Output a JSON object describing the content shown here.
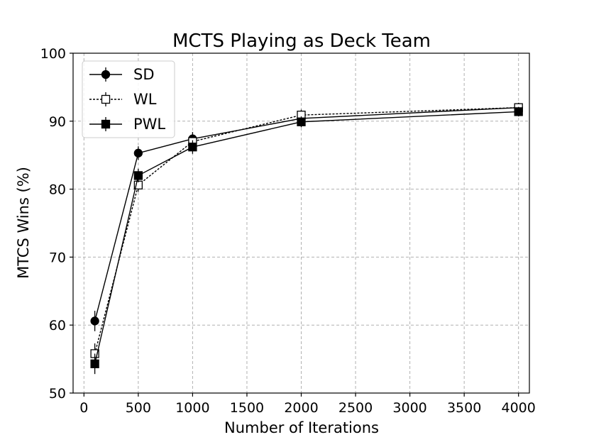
{
  "chart_data": {
    "type": "line",
    "title": "MCTS Playing as Deck Team",
    "xlabel": "Number of Iterations",
    "ylabel": "MTCS Wins (%)",
    "xlim": [
      -100,
      4100
    ],
    "ylim": [
      50,
      100
    ],
    "xticks": [
      0,
      500,
      1000,
      1500,
      2000,
      2500,
      3000,
      3500,
      4000
    ],
    "yticks": [
      50,
      60,
      70,
      80,
      90,
      100
    ],
    "grid": true,
    "legend_position": "top-left",
    "x": [
      100,
      500,
      1000,
      2000,
      4000
    ],
    "series": [
      {
        "name": "SD",
        "marker": "circle",
        "marker_fill": "#000000",
        "line_style": "solid",
        "values": [
          60.6,
          85.3,
          87.4,
          90.4,
          92.0
        ],
        "errors": [
          1.5,
          1.0,
          1.0,
          0.8,
          0.7
        ]
      },
      {
        "name": "WL",
        "marker": "square",
        "marker_fill": "#ffffff",
        "line_style": "dotted",
        "values": [
          55.8,
          80.6,
          87.0,
          90.9,
          92.0
        ],
        "errors": [
          1.5,
          1.0,
          1.0,
          0.8,
          0.7
        ]
      },
      {
        "name": "PWL",
        "marker": "square",
        "marker_fill": "#000000",
        "line_style": "solid",
        "values": [
          54.3,
          82.0,
          86.2,
          89.9,
          91.4
        ],
        "errors": [
          1.5,
          1.0,
          1.0,
          0.8,
          0.7
        ]
      }
    ]
  }
}
